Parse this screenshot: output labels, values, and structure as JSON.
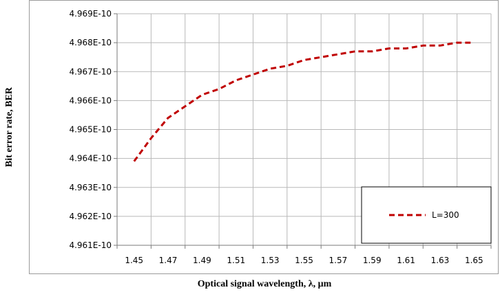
{
  "chart_data": {
    "type": "line",
    "xlabel": "Optical signal wavelength, λ, μm",
    "ylabel": "Bit error rate, BER",
    "x_ticks": [
      "1.45",
      "1.47",
      "1.49",
      "1.51",
      "1.53",
      "1.55",
      "1.57",
      "1.59",
      "1.61",
      "1.63",
      "1.65"
    ],
    "y_ticks": [
      "4.961E-10",
      "4.962E-10",
      "4.963E-10",
      "4.964E-10",
      "4.965E-10",
      "4.966E-10",
      "4.967E-10",
      "4.968E-10",
      "4.969E-10"
    ],
    "xlim": [
      1.44,
      1.66
    ],
    "ylim": [
      4.961e-10,
      4.969e-10
    ],
    "grid": true,
    "legend_position": "bottom-right",
    "series": [
      {
        "name": "L=300",
        "color": "#c00000",
        "style": "dashed",
        "x": [
          1.45,
          1.46,
          1.47,
          1.48,
          1.49,
          1.5,
          1.51,
          1.52,
          1.53,
          1.54,
          1.55,
          1.56,
          1.57,
          1.58,
          1.59,
          1.6,
          1.61,
          1.62,
          1.63,
          1.64,
          1.65
        ],
        "y": [
          4.9639e-10,
          4.9647e-10,
          4.9654e-10,
          4.9658e-10,
          4.9662e-10,
          4.9664e-10,
          4.9667e-10,
          4.9669e-10,
          4.9671e-10,
          4.9672e-10,
          4.9674e-10,
          4.9675e-10,
          4.9676e-10,
          4.9677e-10,
          4.9677e-10,
          4.9678e-10,
          4.9678e-10,
          4.9679e-10,
          4.9679e-10,
          4.968e-10,
          4.968e-10
        ]
      }
    ]
  }
}
